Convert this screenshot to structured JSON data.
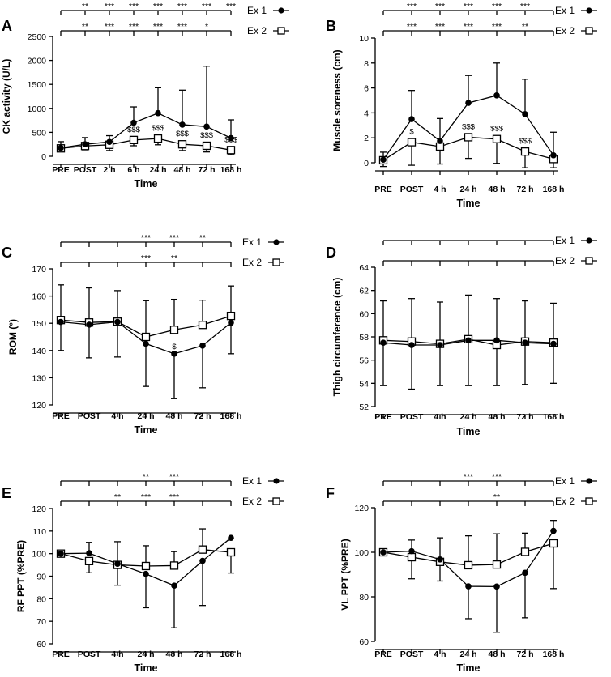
{
  "colors": {
    "line": "#000000",
    "background": "#ffffff",
    "open_marker": "#ffffff"
  },
  "chart_data": [
    {
      "type": "line",
      "panel_label": "A",
      "ylabel": "CK activity (U/L)",
      "xlabel": "Time",
      "categories": [
        "PRE",
        "POST",
        "2 h",
        "6 h",
        "24 h",
        "48 h",
        "72 h",
        "168 h"
      ],
      "ylim": [
        0,
        2500
      ],
      "yticks": [
        "0",
        "500",
        "1000",
        "1500",
        "2000",
        "2500"
      ],
      "series": [
        {
          "name": "Ex 1",
          "marker": "circle",
          "values": [
            175,
            250,
            300,
            700,
            900,
            660,
            620,
            380
          ],
          "err": [
            130,
            140,
            130,
            330,
            530,
            720,
            1260,
            380
          ]
        },
        {
          "name": "Ex 2",
          "marker": "square",
          "values": [
            165,
            215,
            240,
            340,
            370,
            250,
            220,
            130
          ],
          "err": [
            60,
            80,
            120,
            120,
            130,
            130,
            130,
            100
          ]
        }
      ],
      "significance": [
        [
          "",
          "**",
          "***",
          "***",
          "***",
          "***",
          "***",
          "***"
        ],
        [
          "",
          "**",
          "***",
          "***",
          "***",
          "***",
          "*",
          ""
        ]
      ],
      "annotations": [
        "",
        "",
        "",
        "$$$",
        "$$$",
        "$$$",
        "$$$",
        "$$$"
      ]
    },
    {
      "type": "line",
      "panel_label": "B",
      "ylabel": "Muscle soreness (cm)",
      "xlabel": "Time",
      "categories": [
        "PRE",
        "POST",
        "4 h",
        "24 h",
        "48 h",
        "72 h",
        "168 h"
      ],
      "ylim": [
        0,
        10
      ],
      "yticks": [
        "0",
        "2",
        "4",
        "6",
        "8",
        "10"
      ],
      "series": [
        {
          "name": "Ex 1",
          "marker": "circle",
          "values": [
            0.25,
            3.5,
            1.75,
            4.8,
            5.4,
            3.9,
            0.6
          ],
          "err": [
            0.6,
            2.3,
            1.8,
            2.2,
            2.6,
            2.8,
            1.85
          ]
        },
        {
          "name": "Ex 2",
          "marker": "square",
          "values": [
            0.2,
            1.65,
            1.3,
            2.05,
            1.9,
            0.9,
            0.3
          ],
          "err": [
            0.5,
            1.85,
            1.4,
            1.7,
            1.95,
            1.3,
            0.7
          ]
        }
      ],
      "significance": [
        [
          "",
          "***",
          "***",
          "***",
          "***",
          "***",
          ""
        ],
        [
          "",
          "***",
          "***",
          "***",
          "***",
          "**",
          ""
        ]
      ],
      "annotations": [
        "",
        "$",
        "",
        "$$$",
        "$$$",
        "$$$",
        ""
      ]
    },
    {
      "type": "line",
      "panel_label": "C",
      "ylabel": "ROM (°)",
      "xlabel": "Time",
      "categories": [
        "PRE",
        "POST",
        "4 h",
        "24 h",
        "48 h",
        "72 h",
        "168 h"
      ],
      "ylim": [
        120,
        170
      ],
      "yticks": [
        "120",
        "130",
        "140",
        "150",
        "160",
        "170"
      ],
      "series": [
        {
          "name": "Ex 1",
          "marker": "circle",
          "values": [
            150.5,
            149.5,
            150.5,
            142.5,
            138.8,
            141.8,
            150.2
          ],
          "err": [
            10.5,
            12.2,
            12.9,
            15.7,
            16.5,
            15.5,
            11.4
          ]
        },
        {
          "name": "Ex 2",
          "marker": "square",
          "values": [
            151.2,
            150.3,
            150.6,
            145,
            147.6,
            149.4,
            152.7
          ],
          "err": [
            12.9,
            12.7,
            11.4,
            13.3,
            11.2,
            9.1,
            11
          ]
        }
      ],
      "significance": [
        [
          "",
          "",
          "",
          "***",
          "***",
          "**",
          ""
        ],
        [
          "",
          "",
          "",
          "***",
          "**",
          "",
          ""
        ]
      ],
      "annotations": [
        "",
        "",
        "",
        "",
        "$",
        "",
        ""
      ]
    },
    {
      "type": "line",
      "panel_label": "D",
      "ylabel": "Thigh circumference (cm)",
      "xlabel": "Time",
      "categories": [
        "PRE",
        "POST",
        "4 h",
        "24 h",
        "48 h",
        "72 h",
        "168 h"
      ],
      "ylim": [
        52,
        64
      ],
      "yticks": [
        "52",
        "54",
        "56",
        "58",
        "60",
        "62",
        "64"
      ],
      "series": [
        {
          "name": "Ex 1",
          "marker": "circle",
          "values": [
            57.5,
            57.3,
            57.3,
            57.7,
            57.7,
            57.5,
            57.4
          ],
          "err": [
            3.7,
            3.8,
            3.5,
            3.9,
            3.6,
            3.6,
            3.4
          ]
        },
        {
          "name": "Ex 2",
          "marker": "square",
          "values": [
            57.7,
            57.6,
            57.4,
            57.8,
            57.3,
            57.6,
            57.5
          ],
          "err": [
            3.4,
            3.7,
            3.6,
            3.8,
            3.5,
            3.5,
            3.4
          ]
        }
      ],
      "significance": [
        [
          "",
          "",
          "",
          "",
          "",
          "",
          ""
        ],
        [
          "",
          "",
          "",
          "",
          "",
          "",
          ""
        ]
      ],
      "annotations": [
        "",
        "",
        "",
        "",
        "",
        "",
        ""
      ]
    },
    {
      "type": "line",
      "panel_label": "E",
      "ylabel": "RF PPT (%PRE)",
      "xlabel": "Time",
      "categories": [
        "PRE",
        "POST",
        "4 h",
        "24 h",
        "48 h",
        "72 h",
        "168 h"
      ],
      "ylim": [
        60,
        120
      ],
      "yticks": [
        "60",
        "70",
        "80",
        "90",
        "100",
        "110",
        "120"
      ],
      "series": [
        {
          "name": "Ex 1",
          "marker": "circle",
          "values": [
            100,
            100.2,
            95.5,
            91,
            85.8,
            96.8,
            107
          ],
          "err": [
            0,
            4.8,
            9.8,
            15,
            18.7,
            19.8,
            0
          ]
        },
        {
          "name": "Ex 2",
          "marker": "square",
          "values": [
            100,
            96.7,
            95,
            94.5,
            94.7,
            101.8,
            100.6
          ],
          "err": [
            0,
            5.2,
            9,
            9,
            6.2,
            9.2,
            9.2
          ]
        }
      ],
      "significance": [
        [
          "",
          "",
          "",
          "**",
          "***",
          "",
          ""
        ],
        [
          "",
          "",
          "**",
          "***",
          "***",
          "",
          ""
        ]
      ],
      "annotations": [
        "",
        "",
        "",
        "",
        "",
        "",
        ""
      ]
    },
    {
      "type": "line",
      "panel_label": "F",
      "ylabel": "VL PPT (%PRE)",
      "xlabel": "Time",
      "categories": [
        "PRE",
        "POST",
        "4 h",
        "24 h",
        "48 h",
        "72 h",
        "168 h"
      ],
      "ylim": [
        60,
        120
      ],
      "yticks": [
        "60",
        "80",
        "100",
        "120"
      ],
      "series": [
        {
          "name": "Ex 1",
          "marker": "circle",
          "values": [
            100,
            100.5,
            96.8,
            84.7,
            84.6,
            90.8,
            109.6
          ],
          "err": [
            0,
            5,
            9.7,
            14.5,
            20.5,
            20.2,
            4.7
          ]
        },
        {
          "name": "Ex 2",
          "marker": "square",
          "values": [
            100,
            97.8,
            95.7,
            94.2,
            94.5,
            100.2,
            104
          ],
          "err": [
            0,
            9.7,
            8.6,
            13.2,
            13.8,
            8.4,
            20.3
          ]
        }
      ],
      "significance": [
        [
          "",
          "",
          "",
          "***",
          "***",
          "",
          ""
        ],
        [
          "",
          "",
          "",
          "",
          "**",
          "",
          ""
        ]
      ],
      "annotations": [
        "",
        "",
        "",
        "",
        "",
        "",
        ""
      ]
    }
  ]
}
